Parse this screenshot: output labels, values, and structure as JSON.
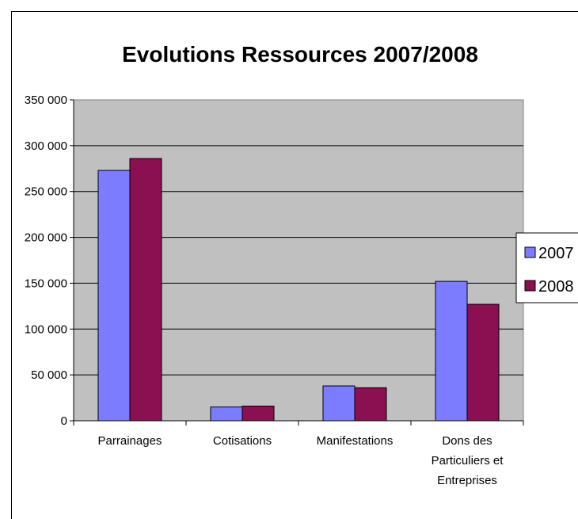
{
  "chart_data": {
    "type": "bar",
    "title": "Evolutions Ressources 2007/2008",
    "xlabel": "",
    "ylabel": "",
    "categories": [
      [
        "Parrainages"
      ],
      [
        "Cotisations"
      ],
      [
        "Manifestations"
      ],
      [
        "Dons des",
        "Particuliers et",
        "Entreprises"
      ]
    ],
    "series": [
      {
        "name": "2007",
        "color": "#7b7cff",
        "values": [
          273000,
          15000,
          38000,
          152000
        ]
      },
      {
        "name": "2008",
        "color": "#8b1052",
        "values": [
          286000,
          16000,
          36000,
          127000
        ]
      }
    ],
    "ylim": [
      0,
      350000
    ],
    "yticks": [
      0,
      50000,
      100000,
      150000,
      200000,
      250000,
      300000,
      350000
    ],
    "ytick_labels": [
      "0",
      "50 000",
      "100 000",
      "150 000",
      "200 000",
      "250 000",
      "300 000",
      "350 000"
    ],
    "grid": true,
    "plot_background": "#c0c0c0",
    "legend_position": "right"
  }
}
